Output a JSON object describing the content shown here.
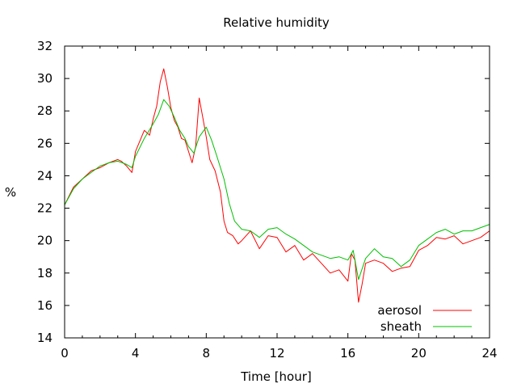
{
  "chart_data": {
    "type": "line",
    "title": "Relative humidity",
    "xlabel": "Time [hour]",
    "ylabel": "%",
    "xlim": [
      0,
      24
    ],
    "ylim": [
      14,
      32
    ],
    "x_ticks": [
      0,
      4,
      8,
      12,
      16,
      20,
      24
    ],
    "y_ticks": [
      14,
      16,
      18,
      20,
      22,
      24,
      26,
      28,
      30,
      32
    ],
    "grid": false,
    "legend_position": "bottom-right",
    "series": [
      {
        "name": "aerosol",
        "color": "#ff0000",
        "x": [
          0,
          0.5,
          1,
          1.5,
          2,
          2.5,
          3,
          3.2,
          3.5,
          3.8,
          4,
          4.5,
          4.8,
          5,
          5.2,
          5.4,
          5.6,
          5.8,
          6,
          6.2,
          6.4,
          6.6,
          6.8,
          7,
          7.2,
          7.4,
          7.6,
          7.8,
          8,
          8.2,
          8.5,
          8.8,
          9,
          9.2,
          9.5,
          9.8,
          10,
          10.5,
          11,
          11.5,
          12,
          12.5,
          13,
          13.5,
          14,
          14.5,
          15,
          15.5,
          16,
          16.2,
          16.4,
          16.6,
          16.8,
          17,
          17.5,
          18,
          18.5,
          19,
          19.5,
          20,
          20.5,
          21,
          21.5,
          22,
          22.5,
          23,
          23.5,
          24
        ],
        "y": [
          22.2,
          23.3,
          23.8,
          24.3,
          24.5,
          24.8,
          25,
          24.9,
          24.6,
          24.2,
          25.5,
          26.8,
          26.5,
          27.5,
          28.3,
          29.8,
          30.6,
          29.5,
          28.2,
          27.4,
          27,
          26.3,
          26.2,
          25.5,
          24.8,
          25.8,
          28.8,
          27.6,
          26.4,
          25,
          24.3,
          23,
          21.2,
          20.5,
          20.3,
          19.8,
          20,
          20.6,
          19.5,
          20.3,
          20.2,
          19.3,
          19.7,
          18.8,
          19.2,
          18.6,
          18,
          18.2,
          17.5,
          19.2,
          18.8,
          16.2,
          17.3,
          18.6,
          18.8,
          18.6,
          18.1,
          18.3,
          18.4,
          19.4,
          19.7,
          20.2,
          20.1,
          20.3,
          19.8,
          20,
          20.2,
          20.6
        ]
      },
      {
        "name": "sheath",
        "color": "#00c000",
        "x": [
          0,
          0.5,
          1,
          1.5,
          2,
          2.5,
          3,
          3.5,
          3.8,
          4,
          4.5,
          5,
          5.3,
          5.6,
          5.9,
          6.2,
          6.5,
          6.8,
          7,
          7.3,
          7.6,
          8,
          8.3,
          8.6,
          9,
          9.3,
          9.6,
          10,
          10.5,
          11,
          11.5,
          12,
          12.5,
          13,
          13.5,
          14,
          14.5,
          15,
          15.5,
          16,
          16.3,
          16.6,
          17,
          17.5,
          18,
          18.5,
          19,
          19.5,
          20,
          20.5,
          21,
          21.5,
          22,
          22.5,
          23,
          23.5,
          24
        ],
        "y": [
          22.2,
          23.2,
          23.8,
          24.2,
          24.6,
          24.8,
          24.9,
          24.7,
          24.5,
          25.2,
          26.3,
          27.2,
          27.8,
          28.7,
          28.3,
          27.6,
          26.8,
          26.3,
          25.8,
          25.4,
          26.4,
          27,
          26.2,
          25.2,
          23.8,
          22.3,
          21.2,
          20.7,
          20.6,
          20.2,
          20.7,
          20.8,
          20.4,
          20.1,
          19.7,
          19.3,
          19.1,
          18.9,
          19,
          18.8,
          19.4,
          17.6,
          18.9,
          19.5,
          19,
          18.9,
          18.4,
          18.8,
          19.7,
          20.1,
          20.5,
          20.7,
          20.4,
          20.6,
          20.6,
          20.8,
          21
        ]
      }
    ]
  }
}
